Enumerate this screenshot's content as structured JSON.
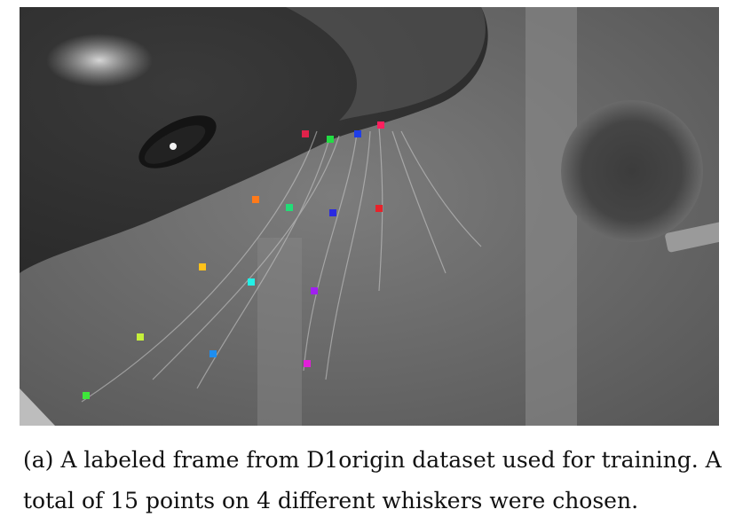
{
  "figure": {
    "caption": "(a) A labeled frame from D1origin dataset used for training. A total of 15 points on 4 different whiskers were chosen.",
    "labeled_points": [
      {
        "color": "#e0224a"
      },
      {
        "color": "#22dd44"
      },
      {
        "color": "#1f3ee8"
      },
      {
        "color": "#ff1f5e"
      },
      {
        "color": "#ff7a1a"
      },
      {
        "color": "#22dd77"
      },
      {
        "color": "#2a2ae0"
      },
      {
        "color": "#e8222a"
      },
      {
        "color": "#ffc21a"
      },
      {
        "color": "#22f0e6"
      },
      {
        "color": "#a020f0"
      },
      {
        "color": "#c6f03a"
      },
      {
        "color": "#1e8ef0"
      },
      {
        "color": "#e020d8"
      },
      {
        "color": "#3ee63a"
      }
    ]
  }
}
